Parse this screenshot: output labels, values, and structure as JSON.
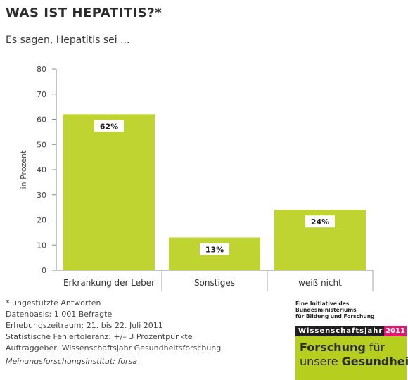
{
  "header": {
    "title": "WAS IST HEPATITIS?*",
    "subtitle": "Es sagen, Hepatitis sei ..."
  },
  "chart_data": {
    "type": "bar",
    "categories": [
      "Erkrankung der Leber",
      "Sonstiges",
      "weiß nicht"
    ],
    "values": [
      62,
      13,
      24
    ],
    "data_labels": [
      "62%",
      "13%",
      "24%"
    ],
    "ylabel": "in Prozent",
    "ylim": [
      0,
      80
    ],
    "yticks": [
      0,
      10,
      20,
      30,
      40,
      50,
      60,
      70,
      80
    ],
    "grid": false,
    "bar_color": "#bfd430",
    "label_box_color": "#ffffff"
  },
  "notes": [
    "* ungestützte Antworten",
    "Datenbasis: 1.001 Befragte",
    "Erhebungszeitraum: 21. bis 22. Juli 2011",
    "Statistische Fehlertoleranz: +/– 3 Prozentpunkte",
    "Auftraggeber: Wissenschaftsjahr Gesundheitsforschung"
  ],
  "institute": "Meinungsforschungsinstitut: forsa",
  "logo": {
    "line1": "Eine Initiative des Bundesministeriums",
    "line2": "für Bildung und Forschung",
    "bar_text": "Wissenschaftsjahr",
    "bar_year": "2011",
    "box_word1": "Forschung",
    "box_word2": "für",
    "box_word3": "unsere",
    "box_word4": "Gesundheit",
    "green": "#b6cf1f",
    "magenta": "#e0196f"
  }
}
